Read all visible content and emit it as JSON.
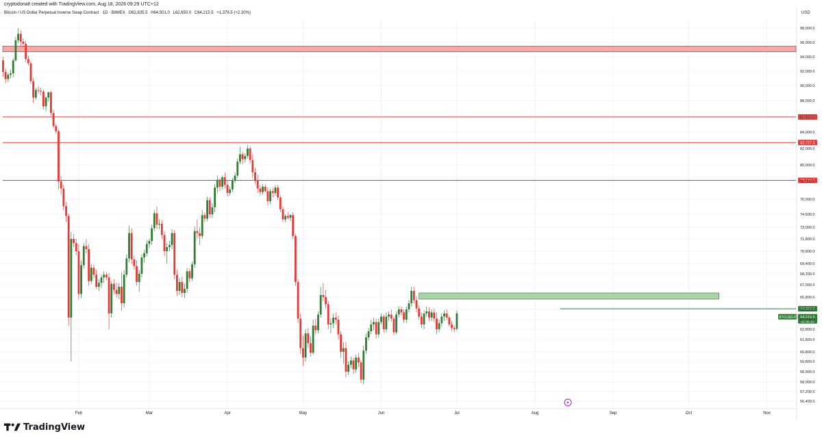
{
  "header": {
    "created_by": "cryptodonalt created with TradingView.com, Aug 18, 2026 09:29 UTC+12",
    "symbol_title": "Bitcoin / US Dollar Perpetual Inverse Swap Contract · 1D · BitMEX",
    "open": "O62,835.5",
    "high": "H64,501.0",
    "low": "L62,650.0",
    "close": "C64,215.5",
    "change": "+1,379.5 (+2.20%)"
  },
  "brand": {
    "name": "TradingView"
  },
  "colors": {
    "up": "#2e7d32",
    "down": "#e53935",
    "resistance_line": "#e53935",
    "resistance_zone_fill": "#f7a8a8",
    "support_zone_fill": "#a5d6a7",
    "support_line": "#2e7d32",
    "grid": "#f0f3fa",
    "axis_text": "#131722"
  },
  "chart_data": {
    "type": "candlestick",
    "currency": "USD",
    "y_ticks": [
      98000,
      96000,
      94000,
      92000,
      90000,
      88000,
      86000,
      84000,
      82000,
      80000,
      78000,
      76000,
      74500,
      73000,
      71800,
      70600,
      69400,
      68200,
      67000,
      65800,
      64600,
      63600,
      62800,
      61800,
      60800,
      59800,
      58900,
      58000,
      57200,
      56400
    ],
    "y_tick_labels": [
      "98,000.0",
      "96,000.0",
      "94,000.0",
      "92,000.0",
      "90,000.0",
      "88,000.0",
      "86,000.0",
      "84,000.0",
      "82,000.0",
      "80,000.0",
      "78,000.0",
      "76,000.0",
      "74,500.0",
      "73,000.0",
      "71,800.0",
      "70,600.0",
      "69,400.0",
      "68,200.0",
      "67,000.0",
      "65,800.0",
      "64,600.0",
      "63,600.0",
      "62,800.0",
      "61,800.0",
      "60,800.0",
      "59,800.0",
      "58,900.0",
      "58,000.0",
      "57,200.0",
      "56,400.0"
    ],
    "x_tick_labels": [
      "Feb",
      "Mar",
      "Apr",
      "May",
      "Jun",
      "Jul",
      "Aug",
      "Sep",
      "Oct",
      "Nov"
    ],
    "x_tick_positions": [
      31,
      59,
      90,
      120,
      151,
      181,
      212,
      243,
      273,
      304
    ],
    "horizontal_lines": [
      {
        "price": 86009.5,
        "label": "86,009.5"
      },
      {
        "price": 82727.5,
        "label": "82,727.5"
      },
      {
        "price": 78124.5,
        "label": "78,124.5"
      }
    ],
    "resistance_zone": {
      "from": 94700,
      "to": 95500,
      "x_start": 0,
      "x_end": 1
    },
    "support_zone": {
      "from": 65600,
      "to": 66200,
      "x_start_day": 166,
      "x_end_day": 285
    },
    "support_line": {
      "price": 64662.5,
      "label": "64,662.5",
      "x_start_day": 222
    },
    "last_price": {
      "price": 64215.5,
      "label": "64,215.5",
      "symbol": "BTCUSD.P",
      "countdown": "02:30:10"
    },
    "ohlc_daily": [
      [
        1,
        93500,
        94000,
        91200,
        91900
      ],
      [
        2,
        91900,
        92400,
        90300,
        90900
      ],
      [
        3,
        90900,
        91800,
        90500,
        91500
      ],
      [
        4,
        91500,
        92200,
        91000,
        91700
      ],
      [
        5,
        91700,
        93800,
        91100,
        93500
      ],
      [
        6,
        93500,
        96800,
        93300,
        96300
      ],
      [
        7,
        96300,
        98000,
        95900,
        97200
      ],
      [
        8,
        97200,
        97700,
        95400,
        96100
      ],
      [
        9,
        96100,
        96600,
        95300,
        95800
      ],
      [
        10,
        95800,
        96200,
        93300,
        93700
      ],
      [
        11,
        93700,
        94200,
        92800,
        93100
      ],
      [
        12,
        93100,
        93400,
        90200,
        90600
      ],
      [
        13,
        90600,
        91000,
        87700,
        88400
      ],
      [
        14,
        88400,
        89700,
        88100,
        89400
      ],
      [
        15,
        89400,
        89900,
        88900,
        89300
      ],
      [
        16,
        89300,
        89700,
        88700,
        89200
      ],
      [
        17,
        89200,
        89500,
        86900,
        87300
      ],
      [
        18,
        87300,
        88600,
        86700,
        88400
      ],
      [
        19,
        88400,
        89200,
        87900,
        89100
      ],
      [
        20,
        89100,
        89300,
        86200,
        86500
      ],
      [
        21,
        86500,
        86900,
        84500,
        84800
      ],
      [
        22,
        84800,
        85100,
        83800,
        84100
      ],
      [
        23,
        84100,
        84400,
        77100,
        78000
      ],
      [
        24,
        78000,
        78600,
        76500,
        77200
      ],
      [
        25,
        77200,
        77600,
        74900,
        75300
      ],
      [
        26,
        75300,
        75700,
        73600,
        74300
      ],
      [
        27,
        74300,
        74600,
        63100,
        63800
      ],
      [
        28,
        63800,
        72500,
        59800,
        71800
      ],
      [
        29,
        71800,
        72300,
        71000,
        71400
      ],
      [
        30,
        71400,
        71800,
        70200,
        70600
      ],
      [
        31,
        70600,
        71300,
        65600,
        66100
      ],
      [
        32,
        66100,
        69700,
        65700,
        69200
      ],
      [
        33,
        69200,
        71400,
        68800,
        71100
      ],
      [
        34,
        71100,
        71800,
        70400,
        70800
      ],
      [
        35,
        70800,
        71300,
        66900,
        67400
      ],
      [
        36,
        67400,
        69300,
        67100,
        68900
      ],
      [
        37,
        68900,
        69300,
        67700,
        68100
      ],
      [
        38,
        68100,
        68700,
        66600,
        66800
      ],
      [
        39,
        66800,
        67600,
        66400,
        67200
      ],
      [
        40,
        67200,
        68100,
        66700,
        67800
      ],
      [
        41,
        67800,
        68500,
        67200,
        68100
      ],
      [
        42,
        68100,
        68400,
        67500,
        67800
      ],
      [
        43,
        67800,
        68300,
        62800,
        64200
      ],
      [
        44,
        64200,
        67400,
        63800,
        67100
      ],
      [
        45,
        67100,
        67600,
        66100,
        66500
      ],
      [
        46,
        66500,
        67200,
        65700,
        66100
      ],
      [
        47,
        66100,
        67200,
        65600,
        66800
      ],
      [
        48,
        66800,
        68400,
        64500,
        65200
      ],
      [
        49,
        65200,
        68600,
        64800,
        68100
      ],
      [
        50,
        68100,
        70300,
        67800,
        69900
      ],
      [
        51,
        69900,
        73200,
        69500,
        72400
      ],
      [
        52,
        72400,
        72900,
        69300,
        69800
      ],
      [
        53,
        69800,
        70200,
        68700,
        69100
      ],
      [
        54,
        69100,
        69700,
        66900,
        67300
      ],
      [
        55,
        67300,
        68600,
        66300,
        68200
      ],
      [
        56,
        68200,
        70300,
        67800,
        70000
      ],
      [
        57,
        70000,
        70700,
        69500,
        70400
      ],
      [
        58,
        70400,
        71700,
        70100,
        71300
      ],
      [
        59,
        71300,
        71800,
        70900,
        71600
      ],
      [
        60,
        71600,
        73300,
        71200,
        72900
      ],
      [
        61,
        72900,
        74900,
        72600,
        74600
      ],
      [
        62,
        74600,
        75300,
        72800,
        73300
      ],
      [
        63,
        73300,
        73900,
        72800,
        73400
      ],
      [
        64,
        73400,
        73800,
        71800,
        72200
      ],
      [
        65,
        72200,
        72600,
        70100,
        70600
      ],
      [
        66,
        70600,
        71400,
        69400,
        71000
      ],
      [
        67,
        71000,
        71600,
        70600,
        71200
      ],
      [
        68,
        71200,
        72800,
        70800,
        72400
      ],
      [
        69,
        72400,
        72700,
        67600,
        68100
      ],
      [
        70,
        68100,
        68700,
        65900,
        66400
      ],
      [
        71,
        66400,
        67700,
        66000,
        67300
      ],
      [
        72,
        67300,
        67900,
        65800,
        66200
      ],
      [
        73,
        66200,
        67100,
        65700,
        66600
      ],
      [
        74,
        66600,
        68900,
        66200,
        68500
      ],
      [
        75,
        68500,
        68800,
        67300,
        67700
      ],
      [
        76,
        67700,
        69600,
        67400,
        69300
      ],
      [
        77,
        69300,
        73100,
        68900,
        72600
      ],
      [
        78,
        72600,
        73900,
        71800,
        72400
      ],
      [
        79,
        72400,
        73000,
        71200,
        72100
      ],
      [
        80,
        72100,
        74900,
        71800,
        74400
      ],
      [
        81,
        74400,
        74700,
        73600,
        74000
      ],
      [
        82,
        74000,
        76300,
        73700,
        75900
      ],
      [
        83,
        75900,
        76200,
        74100,
        74500
      ],
      [
        84,
        74500,
        75600,
        74100,
        75200
      ],
      [
        85,
        75200,
        77700,
        74700,
        77300
      ],
      [
        86,
        77300,
        78700,
        76700,
        78200
      ],
      [
        87,
        78200,
        78400,
        76900,
        77400
      ],
      [
        88,
        77400,
        78700,
        77100,
        78500
      ],
      [
        89,
        78500,
        79100,
        77200,
        77600
      ],
      [
        90,
        77600,
        78100,
        76300,
        76700
      ],
      [
        91,
        76700,
        77400,
        76400,
        77100
      ],
      [
        92,
        77100,
        78400,
        76800,
        78100
      ],
      [
        93,
        78100,
        79100,
        77800,
        78700
      ],
      [
        94,
        78700,
        80800,
        78400,
        80400
      ],
      [
        95,
        80400,
        82200,
        80100,
        81300
      ],
      [
        96,
        81300,
        81600,
        80100,
        80700
      ],
      [
        97,
        80700,
        81400,
        80300,
        81100
      ],
      [
        98,
        81100,
        82400,
        80800,
        82000
      ],
      [
        99,
        82000,
        82300,
        80200,
        80600
      ],
      [
        100,
        80600,
        81300,
        78400,
        79100
      ],
      [
        101,
        79100,
        79600,
        77700,
        78100
      ],
      [
        102,
        78100,
        78800,
        76700,
        77200
      ],
      [
        103,
        77200,
        77600,
        76400,
        76800
      ],
      [
        104,
        76800,
        77700,
        76500,
        77400
      ],
      [
        105,
        77400,
        77700,
        76700,
        76900
      ],
      [
        106,
        76900,
        77300,
        75400,
        75800
      ],
      [
        107,
        75800,
        77200,
        75500,
        76900
      ],
      [
        108,
        76900,
        77300,
        76200,
        76700
      ],
      [
        109,
        76700,
        77600,
        76400,
        77300
      ],
      [
        110,
        77300,
        77600,
        75900,
        76200
      ],
      [
        111,
        76200,
        76400,
        74700,
        75000
      ],
      [
        112,
        75000,
        75300,
        73600,
        73900
      ],
      [
        113,
        73900,
        74500,
        73600,
        74300
      ],
      [
        114,
        74300,
        74700,
        73900,
        74100
      ],
      [
        115,
        74100,
        74500,
        73700,
        74400
      ],
      [
        116,
        74400,
        74700,
        71800,
        72100
      ],
      [
        117,
        72100,
        72300,
        66900,
        67300
      ],
      [
        118,
        67300,
        67600,
        63300,
        63700
      ],
      [
        119,
        63700,
        64200,
        60600,
        61100
      ],
      [
        120,
        61100,
        62200,
        59400,
        60200
      ],
      [
        121,
        60200,
        62800,
        59800,
        62400
      ],
      [
        122,
        62400,
        62900,
        61100,
        61500
      ],
      [
        123,
        61500,
        62100,
        60300,
        60700
      ],
      [
        124,
        60700,
        63600,
        60500,
        63100
      ],
      [
        125,
        63100,
        63700,
        62300,
        62700
      ],
      [
        126,
        62700,
        64400,
        62400,
        64100
      ],
      [
        127,
        64100,
        66800,
        63800,
        66000
      ],
      [
        128,
        66000,
        67200,
        65400,
        65800
      ],
      [
        129,
        65800,
        66500,
        64700,
        65100
      ],
      [
        130,
        65100,
        65400,
        62800,
        63200
      ],
      [
        131,
        63200,
        63700,
        62400,
        63300
      ],
      [
        132,
        63300,
        64200,
        62900,
        63800
      ],
      [
        133,
        63800,
        64300,
        63200,
        63600
      ],
      [
        134,
        63600,
        64000,
        61800,
        62300
      ],
      [
        135,
        62300,
        62600,
        60200,
        60800
      ],
      [
        136,
        60800,
        61600,
        59600,
        61100
      ],
      [
        137,
        61100,
        61600,
        58400,
        58900
      ],
      [
        138,
        58900,
        59800,
        58600,
        59500
      ],
      [
        139,
        59500,
        60300,
        59200,
        59900
      ],
      [
        140,
        59900,
        60200,
        58700,
        59100
      ],
      [
        141,
        59100,
        60500,
        58800,
        60200
      ],
      [
        142,
        60200,
        60700,
        59300,
        59700
      ],
      [
        143,
        59700,
        59900,
        57900,
        58200
      ],
      [
        144,
        58200,
        61300,
        57800,
        60900
      ],
      [
        145,
        60900,
        62400,
        60600,
        62000
      ],
      [
        146,
        62000,
        62900,
        61700,
        62600
      ],
      [
        147,
        62600,
        63600,
        62300,
        63200
      ],
      [
        148,
        63200,
        63800,
        62700,
        63400
      ],
      [
        149,
        63400,
        63700,
        61900,
        62300
      ],
      [
        150,
        62300,
        63700,
        62000,
        63400
      ],
      [
        151,
        63400,
        64200,
        63200,
        63900
      ],
      [
        152,
        63900,
        64100,
        62500,
        62800
      ],
      [
        153,
        62800,
        64300,
        62500,
        63900
      ],
      [
        154,
        63900,
        64400,
        63500,
        64100
      ],
      [
        155,
        64100,
        64600,
        63400,
        63700
      ],
      [
        156,
        63700,
        63900,
        62200,
        62500
      ],
      [
        157,
        62500,
        64400,
        62300,
        64100
      ],
      [
        158,
        64100,
        64900,
        63800,
        64600
      ],
      [
        159,
        64600,
        64900,
        64000,
        64300
      ],
      [
        160,
        64300,
        64600,
        63300,
        63600
      ],
      [
        161,
        63600,
        64900,
        63300,
        64600
      ],
      [
        162,
        64600,
        65500,
        64300,
        65200
      ],
      [
        163,
        65200,
        66800,
        64900,
        66400
      ],
      [
        164,
        66400,
        66800,
        65200,
        65500
      ],
      [
        165,
        65500,
        65900,
        64300,
        64700
      ],
      [
        166,
        64700,
        65000,
        63600,
        63900
      ],
      [
        167,
        63900,
        64300,
        62900,
        63200
      ],
      [
        168,
        63200,
        64500,
        62800,
        64200
      ],
      [
        169,
        64200,
        64900,
        63900,
        64400
      ],
      [
        170,
        64400,
        64800,
        63500,
        63800
      ],
      [
        171,
        63800,
        64600,
        63500,
        64300
      ],
      [
        172,
        64300,
        64700,
        63400,
        63700
      ],
      [
        173,
        63700,
        64300,
        62300,
        62800
      ],
      [
        174,
        62800,
        63600,
        62500,
        63300
      ],
      [
        175,
        63300,
        64200,
        63000,
        63900
      ],
      [
        176,
        63900,
        64500,
        63500,
        64200
      ],
      [
        177,
        64200,
        64600,
        63600,
        63800
      ],
      [
        178,
        63800,
        64000,
        63000,
        63200
      ],
      [
        179,
        63200,
        63500,
        62600,
        62900
      ],
      [
        180,
        62900,
        63100,
        62500,
        62800
      ],
      [
        181,
        62835.5,
        64501,
        62650,
        64215.5
      ]
    ]
  }
}
